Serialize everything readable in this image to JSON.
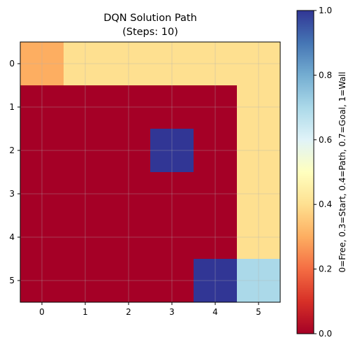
{
  "chart_data": {
    "type": "heatmap",
    "title": "DQN Solution Path",
    "subtitle": "(Steps: 10)",
    "x_ticks": [
      "0",
      "1",
      "2",
      "3",
      "4",
      "5"
    ],
    "y_ticks": [
      "0",
      "1",
      "2",
      "3",
      "4",
      "5"
    ],
    "grid": true,
    "values": [
      [
        0.3,
        0.4,
        0.4,
        0.4,
        0.4,
        0.4
      ],
      [
        0.0,
        0.0,
        0.0,
        0.0,
        0.0,
        0.4
      ],
      [
        0.0,
        0.0,
        0.0,
        1.0,
        0.0,
        0.4
      ],
      [
        0.0,
        0.0,
        0.0,
        0.0,
        0.0,
        0.4
      ],
      [
        0.0,
        0.0,
        0.0,
        0.0,
        0.0,
        0.4
      ],
      [
        0.0,
        0.0,
        0.0,
        0.0,
        1.0,
        0.7
      ]
    ],
    "colormap": "RdYlBu",
    "vmin": 0.0,
    "vmax": 1.0,
    "colorbar": {
      "label": "0=Free, 0.3=Start, 0.4=Path, 0.7=Goal, 1=Wall",
      "ticks": [
        "0.0",
        "0.2",
        "0.4",
        "0.6",
        "0.8",
        "1.0"
      ],
      "tick_values": [
        0.0,
        0.2,
        0.4,
        0.6,
        0.8,
        1.0
      ],
      "placement": "right"
    },
    "colors": {
      "free": "#a50026",
      "start": "#fdae61",
      "path": "#fee090",
      "goal": "#abd9e9",
      "wall": "#313695"
    }
  }
}
